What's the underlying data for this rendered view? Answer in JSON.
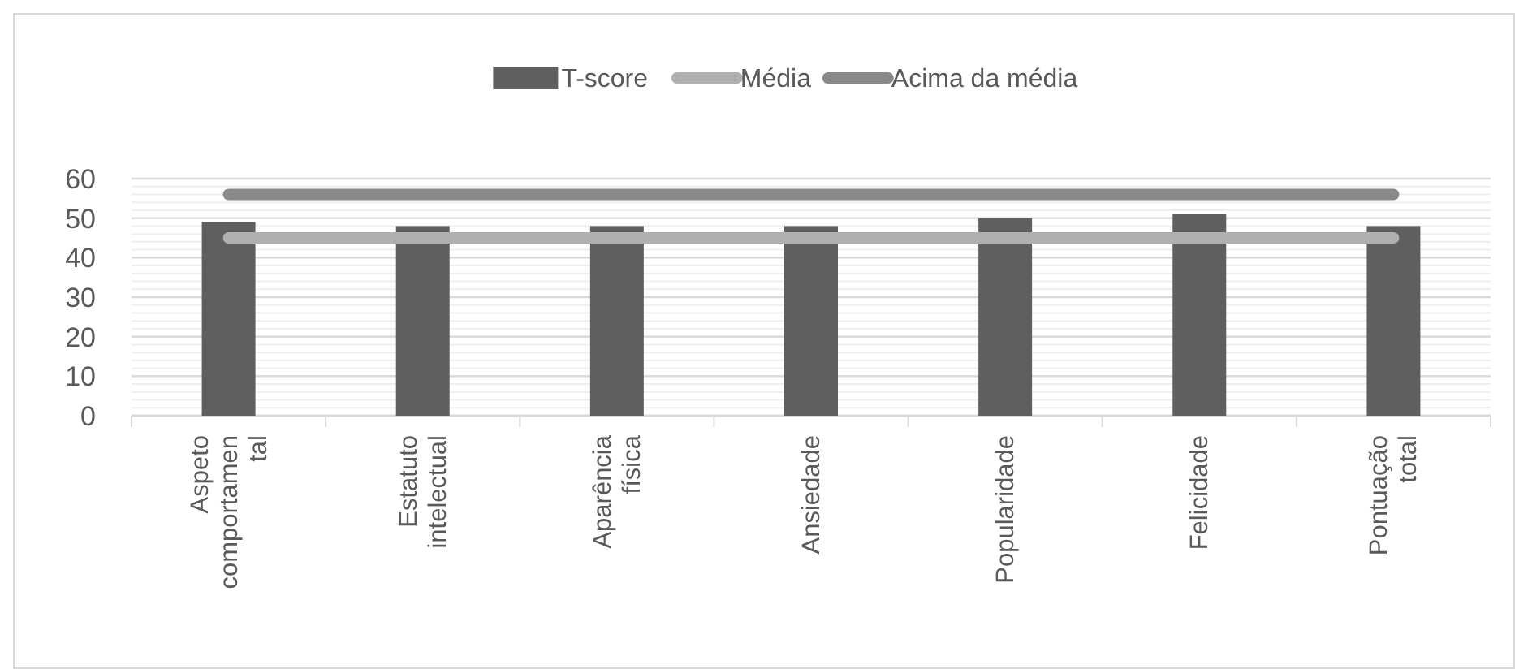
{
  "chart_data": {
    "type": "bar",
    "categories": [
      "Aspeto comportamental",
      "Estatuto intelectual",
      "Aparência física",
      "Ansiedade",
      "Popularidade",
      "Felicidade",
      "Pontuação total"
    ],
    "series": [
      {
        "name": "T-score",
        "color": "#5f5f5f",
        "values": [
          49,
          48,
          48,
          48,
          50,
          51,
          48
        ]
      },
      {
        "name": "Média",
        "type": "line",
        "color": "#b0b0b0",
        "values": [
          45,
          45,
          45,
          45,
          45,
          45,
          45
        ]
      },
      {
        "name": "Acima da média",
        "type": "line",
        "color": "#898989",
        "values": [
          56,
          56,
          56,
          56,
          56,
          56,
          56
        ]
      }
    ],
    "ylim": [
      0,
      60
    ],
    "yticks": [
      0,
      10,
      20,
      30,
      40,
      50,
      60
    ],
    "grid": "y",
    "legend": "top",
    "marker": "none",
    "line_style": "solid"
  }
}
